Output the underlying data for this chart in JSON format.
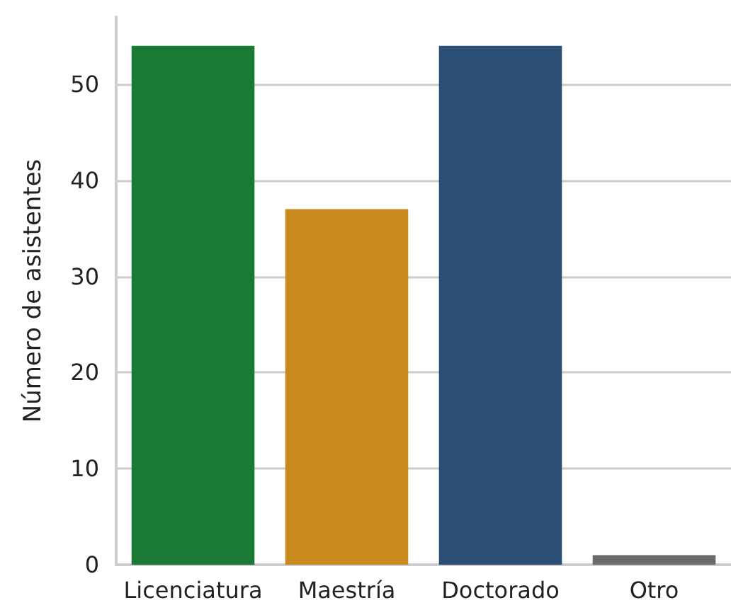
{
  "chart_data": {
    "type": "bar",
    "ylabel": "Número de asistentes",
    "categories": [
      "Licenciatura",
      "Maestría",
      "Doctorado",
      "Otro"
    ],
    "values": [
      54,
      37,
      54,
      1
    ],
    "colors": [
      "#1a7a33",
      "#c88a1e",
      "#2a4e74",
      "#6b6b6b"
    ],
    "ylim": [
      0,
      57
    ],
    "yticks": [
      0,
      10,
      20,
      30,
      40,
      50
    ],
    "grid": "y"
  }
}
